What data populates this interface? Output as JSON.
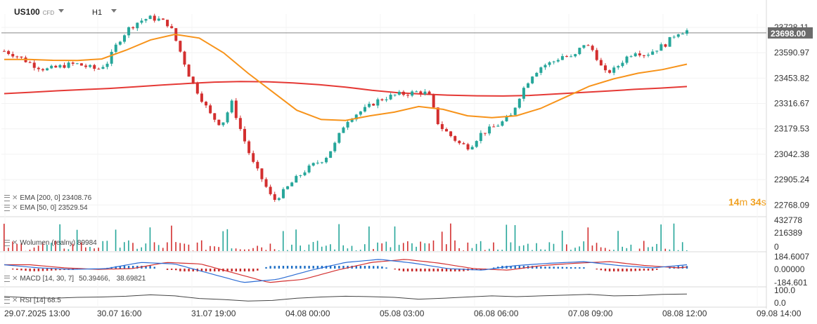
{
  "header": {
    "symbol": "US100",
    "symbol_tag": "CFD",
    "interval": "H1"
  },
  "timer": {
    "minutes": "14",
    "m": "m",
    "seconds": "34",
    "s": "s"
  },
  "indicators": {
    "ema200": "EMA [200, 0] 23408.76",
    "ema50": "EMA [50, 0] 23529.54",
    "volume": "Wolumen (realny) 89984",
    "macd_prefix": "MACD [14, 30, 7]",
    "macd_v1": "50.39466,",
    "macd_v2": "38.69821",
    "rsi": "RSI [14] 68.5"
  },
  "colors": {
    "bull": "#26a69a",
    "bear": "#d32f2f",
    "ema50": "#f7931a",
    "ema200": "#e53935",
    "macd_line": "#2b6cd4",
    "signal_line": "#d32f2f",
    "rsi_line": "#444444",
    "price_tag": "#6b6b6b"
  },
  "chart_data": {
    "type": "line",
    "symbol": "US100",
    "current_price": "23698.00",
    "price_axis_labels": [
      "23728.11",
      "23590.97",
      "23453.82",
      "23316.67",
      "23179.53",
      "23042.38",
      "22905.24",
      "22768.09"
    ],
    "price_axis_values": [
      23728.11,
      23590.97,
      23453.82,
      23316.67,
      23179.53,
      23042.38,
      22905.24,
      22768.09
    ],
    "x_tick_labels": [
      "29.07.2025 13:00",
      "30.07 16:00",
      "31.07 19:00",
      "04.08 00:00",
      "05.08 03:00",
      "06.08 06:00",
      "07.08 09:00",
      "08.08 12:00",
      "09.08 14:00"
    ],
    "price_close_series": [
      23600,
      23580,
      23550,
      23520,
      23500,
      23510,
      23525,
      23530,
      23515,
      23500,
      23540,
      23650,
      23720,
      23760,
      23780,
      23770,
      23740,
      23600,
      23450,
      23350,
      23250,
      23200,
      23320,
      23150,
      23000,
      22900,
      22790,
      22840,
      22900,
      22950,
      22990,
      23020,
      23100,
      23220,
      23260,
      23290,
      23330,
      23350,
      23365,
      23370,
      23380,
      23370,
      23200,
      23150,
      23100,
      23080,
      23150,
      23180,
      23210,
      23250,
      23380,
      23470,
      23520,
      23540,
      23575,
      23560,
      23640,
      23600,
      23480,
      23500,
      23560,
      23600,
      23580,
      23610,
      23640,
      23700,
      23710
    ],
    "ema200_series": [
      23370,
      23377,
      23385,
      23392,
      23398,
      23407,
      23416,
      23425,
      23432,
      23435,
      23434,
      23428,
      23418,
      23405,
      23388,
      23375,
      23367,
      23361,
      23358,
      23357,
      23360,
      23368,
      23376,
      23384,
      23393,
      23400,
      23408
    ],
    "ema50_series": [
      23555,
      23555,
      23550,
      23549,
      23557,
      23605,
      23660,
      23690,
      23670,
      23590,
      23480,
      23380,
      23280,
      23230,
      23225,
      23250,
      23270,
      23300,
      23285,
      23250,
      23240,
      23250,
      23290,
      23350,
      23410,
      23450,
      23480,
      23500,
      23529
    ],
    "volume_axis_labels": [
      "432778",
      "216389",
      "0"
    ],
    "macd_axis_labels": [
      "184.6007",
      "0.00000",
      "-184.601"
    ],
    "rsi_axis_labels": [
      "100.0",
      "0.0"
    ],
    "rsi_series": [
      55,
      48,
      45,
      50,
      52,
      56,
      64,
      58,
      44,
      38,
      30,
      33,
      45,
      52,
      56,
      54,
      50,
      40,
      45,
      52,
      58,
      54,
      58,
      62,
      66,
      58,
      60,
      66,
      68.5
    ],
    "grid": true,
    "legend": "bottom-left"
  }
}
